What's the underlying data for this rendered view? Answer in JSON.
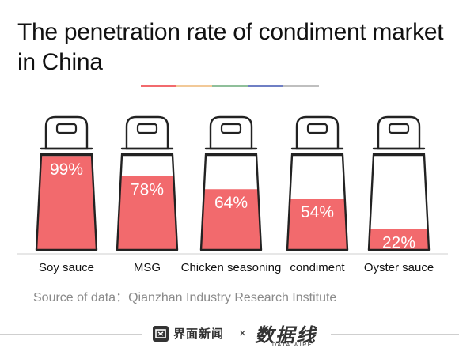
{
  "title": "The penetration rate of condiment market in China",
  "source": "Source of data：Qianzhan Industry Research Institute",
  "colors": {
    "fill": "#f26a6d",
    "outline": "#222222",
    "divider_segments": [
      "#f26a6d",
      "#f2c998",
      "#8fbf9a",
      "#6f7fc4",
      "#bfbfbf"
    ]
  },
  "footer": {
    "brand_left": "界面新闻",
    "times": "×",
    "brand_right": "数据线",
    "brand_right_sub": "DATA WIRE"
  },
  "chart_data": {
    "type": "bar",
    "title": "The penetration rate of condiment market in China",
    "categories": [
      "Soy sauce",
      "MSG",
      "Chicken seasoning",
      "condiment",
      "Oyster sauce"
    ],
    "values": [
      99,
      78,
      64,
      54,
      22
    ],
    "labels": [
      "99%",
      "78%",
      "64%",
      "54%",
      "22%"
    ],
    "ylim": [
      0,
      100
    ],
    "unit": "%",
    "style": "shaker-bottle pictogram fill",
    "grid": false
  }
}
